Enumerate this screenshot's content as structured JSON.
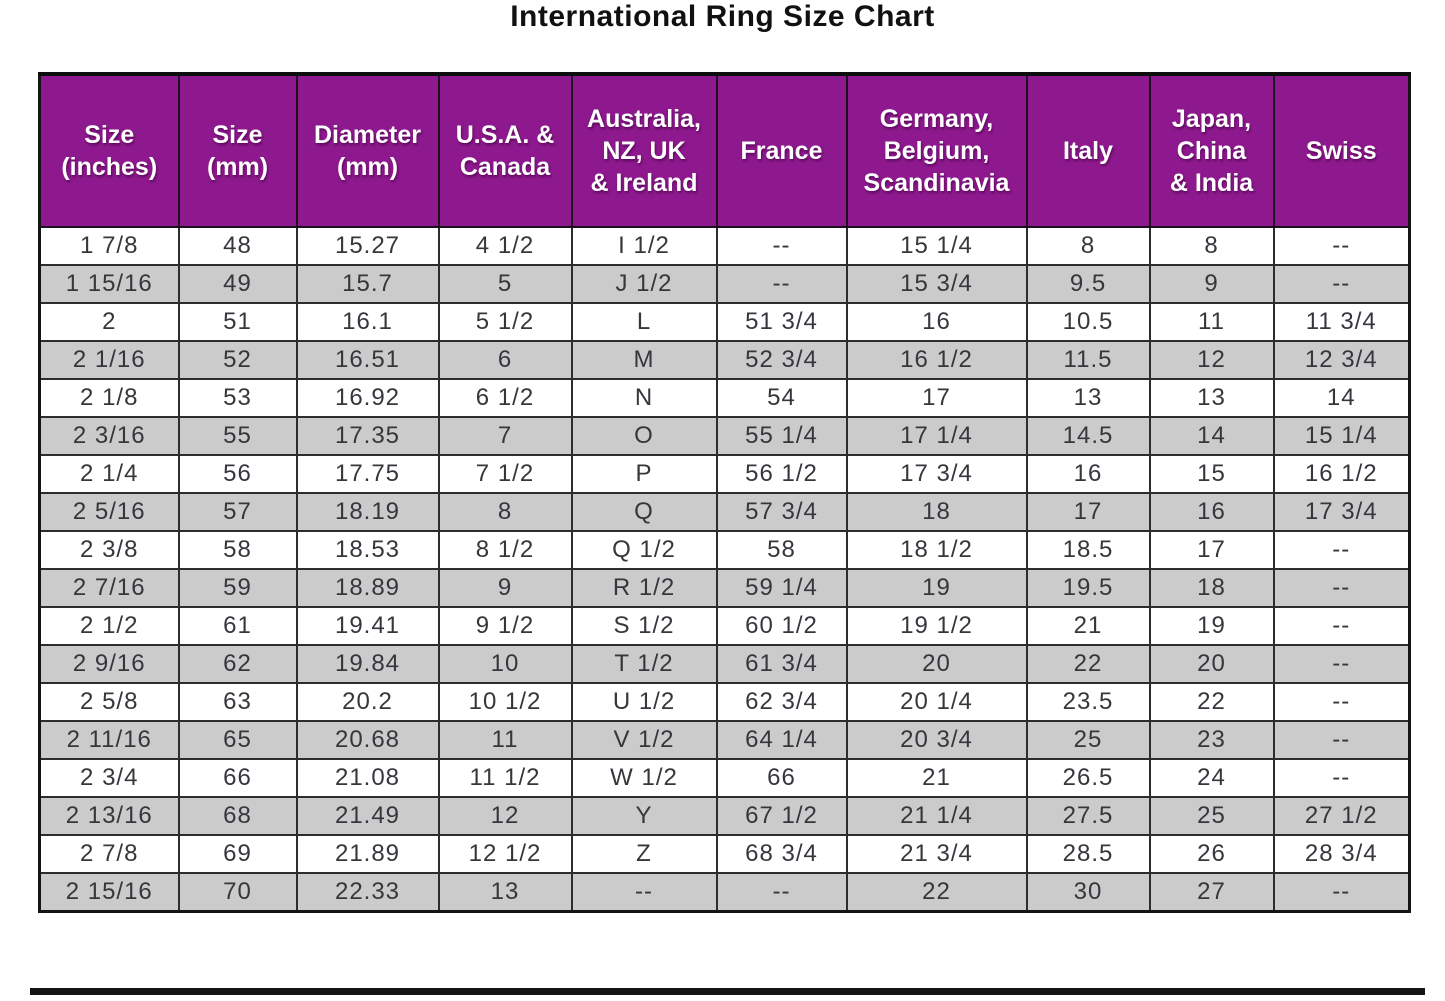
{
  "title": "International Ring Size Chart",
  "colors": {
    "header_bg": "#8E188E",
    "header_text": "#FFFFFF",
    "row_odd_bg": "#FFFFFF",
    "row_even_bg": "#CBCBCB",
    "grid_line": "#2D2D2D",
    "title_text": "#111111"
  },
  "chart_data": {
    "type": "table",
    "title": "International Ring Size Chart",
    "columns": [
      "Size\n(inches)",
      "Size\n(mm)",
      "Diameter\n(mm)",
      "U.S.A. &\nCanada",
      "Australia,\nNZ, UK\n& Ireland",
      "France",
      "Germany,\nBelgium,\nScandinavia",
      "Italy",
      "Japan,\nChina\n& India",
      "Swiss"
    ],
    "rows": [
      [
        "1 7/8",
        "48",
        "15.27",
        "4 1/2",
        "I 1/2",
        "--",
        "15 1/4",
        "8",
        "8",
        "--"
      ],
      [
        "1 15/16",
        "49",
        "15.7",
        "5",
        "J 1/2",
        "--",
        "15 3/4",
        "9.5",
        "9",
        "--"
      ],
      [
        "2",
        "51",
        "16.1",
        "5 1/2",
        "L",
        "51 3/4",
        "16",
        "10.5",
        "11",
        "11 3/4"
      ],
      [
        "2 1/16",
        "52",
        "16.51",
        "6",
        "M",
        "52 3/4",
        "16 1/2",
        "11.5",
        "12",
        "12 3/4"
      ],
      [
        "2 1/8",
        "53",
        "16.92",
        "6 1/2",
        "N",
        "54",
        "17",
        "13",
        "13",
        "14"
      ],
      [
        "2 3/16",
        "55",
        "17.35",
        "7",
        "O",
        "55 1/4",
        "17 1/4",
        "14.5",
        "14",
        "15 1/4"
      ],
      [
        "2 1/4",
        "56",
        "17.75",
        "7 1/2",
        "P",
        "56 1/2",
        "17 3/4",
        "16",
        "15",
        "16 1/2"
      ],
      [
        "2 5/16",
        "57",
        "18.19",
        "8",
        "Q",
        "57 3/4",
        "18",
        "17",
        "16",
        "17 3/4"
      ],
      [
        "2 3/8",
        "58",
        "18.53",
        "8 1/2",
        "Q 1/2",
        "58",
        "18 1/2",
        "18.5",
        "17",
        "--"
      ],
      [
        "2 7/16",
        "59",
        "18.89",
        "9",
        "R 1/2",
        "59 1/4",
        "19",
        "19.5",
        "18",
        "--"
      ],
      [
        "2 1/2",
        "61",
        "19.41",
        "9 1/2",
        "S 1/2",
        "60 1/2",
        "19 1/2",
        "21",
        "19",
        "--"
      ],
      [
        "2 9/16",
        "62",
        "19.84",
        "10",
        "T 1/2",
        "61 3/4",
        "20",
        "22",
        "20",
        "--"
      ],
      [
        "2 5/8",
        "63",
        "20.2",
        "10 1/2",
        "U 1/2",
        "62 3/4",
        "20 1/4",
        "23.5",
        "22",
        "--"
      ],
      [
        "2 11/16",
        "65",
        "20.68",
        "11",
        "V 1/2",
        "64 1/4",
        "20 3/4",
        "25",
        "23",
        "--"
      ],
      [
        "2 3/4",
        "66",
        "21.08",
        "11 1/2",
        "W 1/2",
        "66",
        "21",
        "26.5",
        "24",
        "--"
      ],
      [
        "2 13/16",
        "68",
        "21.49",
        "12",
        "Y",
        "67 1/2",
        "21 1/4",
        "27.5",
        "25",
        "27 1/2"
      ],
      [
        "2 7/8",
        "69",
        "21.89",
        "12 1/2",
        "Z",
        "68 3/4",
        "21 3/4",
        "28.5",
        "26",
        "28 3/4"
      ],
      [
        "2 15/16",
        "70",
        "22.33",
        "13",
        "--",
        "--",
        "22",
        "30",
        "27",
        "--"
      ]
    ]
  }
}
